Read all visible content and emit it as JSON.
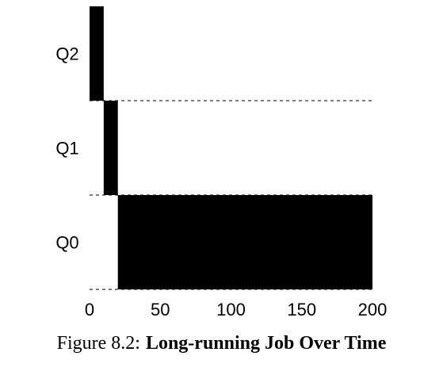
{
  "chart_data": {
    "type": "timeline",
    "categories": [
      "Q2",
      "Q1",
      "Q0"
    ],
    "bars": [
      {
        "category": 0,
        "start": 0,
        "end": 10
      },
      {
        "category": 1,
        "start": 10,
        "end": 20
      },
      {
        "category": 2,
        "start": 20,
        "end": 200
      }
    ],
    "color": "#000000",
    "xlim": [
      0,
      200
    ],
    "xticks": [
      0,
      50,
      100,
      150,
      200
    ],
    "caption_label": "Figure 8.2:",
    "title": "Long-running Job Over Time"
  }
}
